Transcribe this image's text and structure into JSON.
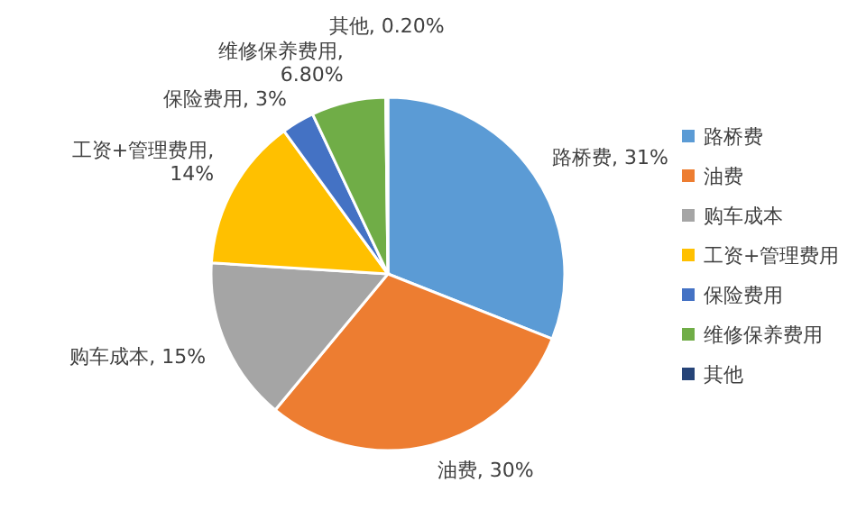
{
  "chart_data": {
    "type": "pie",
    "categories": [
      "路桥费",
      "油费",
      "购车成本",
      "工资+管理费用",
      "保险费用",
      "维修保养费用",
      "其他"
    ],
    "values": [
      31,
      30,
      15,
      14,
      3,
      6.8,
      0.2
    ],
    "value_labels": [
      "路桥费, 31%",
      "油费, 30%",
      "购车成本, 15%",
      "工资+管理费用, 14%",
      "保险费用, 3%",
      "维修保养费用, 6.80%",
      "其他, 0.20%"
    ],
    "colors": [
      "#5b9bd5",
      "#ed7d31",
      "#a5a5a5",
      "#ffc000",
      "#4472c4",
      "#70ad47",
      "#264478"
    ],
    "legend": "right"
  }
}
